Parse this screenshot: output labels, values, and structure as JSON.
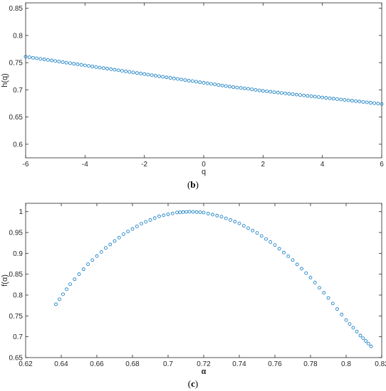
{
  "colors": {
    "marker": "#0072BD",
    "axis": "#262626",
    "background": "#ffffff"
  },
  "captions": [
    {
      "open": "(",
      "letter": "b",
      "close": ")"
    },
    {
      "open": "(",
      "letter": "c",
      "close": ")"
    }
  ],
  "chart_data": [
    {
      "type": "scatter",
      "marker": "circle-open",
      "xlabel": "q",
      "ylabel": "h(q)",
      "xlim": [
        -6,
        6
      ],
      "ylim": [
        0.575,
        0.86
      ],
      "xticks": [
        -6,
        -4,
        -2,
        0,
        2,
        4,
        6
      ],
      "yticks": [
        0.6,
        0.65,
        0.7,
        0.75,
        0.8,
        0.85
      ],
      "xtick_labels": [
        "-6",
        "-4",
        "-2",
        "0",
        "2",
        "4",
        "6"
      ],
      "ytick_labels": [
        "0.6",
        "0.65",
        "0.7",
        "0.75",
        "0.8",
        "0.85"
      ],
      "grid": false,
      "series": [
        {
          "x": [
            -6,
            -5.5,
            -5,
            -4.5,
            -4,
            -3.5,
            -3,
            -2.5,
            -2,
            -1.5,
            -1,
            -0.5,
            0,
            0.5,
            1,
            1.5,
            2,
            2.5,
            3,
            3.5,
            4,
            4.5,
            5,
            5.5,
            6
          ],
          "y": [
            0.761,
            0.757,
            0.753,
            0.749,
            0.745,
            0.741,
            0.737,
            0.733,
            0.729,
            0.725,
            0.721,
            0.717,
            0.713,
            0.709,
            0.705,
            0.702,
            0.698,
            0.695,
            0.692,
            0.689,
            0.686,
            0.683,
            0.68,
            0.677,
            0.674
          ]
        }
      ]
    },
    {
      "type": "scatter",
      "marker": "circle-open",
      "xlabel": "α",
      "ylabel": "f(α)",
      "xlim": [
        0.62,
        0.82
      ],
      "ylim": [
        0.65,
        1.02
      ],
      "xticks": [
        0.62,
        0.64,
        0.66,
        0.68,
        0.7,
        0.72,
        0.74,
        0.76,
        0.78,
        0.8,
        0.82
      ],
      "yticks": [
        0.65,
        0.7,
        0.75,
        0.8,
        0.85,
        0.9,
        0.95,
        1
      ],
      "xtick_labels": [
        "0.62",
        "0.64",
        "0.66",
        "0.68",
        "0.7",
        "0.72",
        "0.74",
        "0.76",
        "0.78",
        "0.8",
        "0.82"
      ],
      "ytick_labels": [
        "0.65",
        "0.7",
        "0.75",
        "0.8",
        "0.85",
        "0.9",
        "0.95",
        "1"
      ],
      "grid": false,
      "series": [
        {
          "x": [
            0.637,
            0.645,
            0.655,
            0.665,
            0.675,
            0.685,
            0.695,
            0.705,
            0.712,
            0.72,
            0.73,
            0.74,
            0.75,
            0.76,
            0.77,
            0.78,
            0.79,
            0.8,
            0.808,
            0.814
          ],
          "y": [
            0.778,
            0.826,
            0.874,
            0.913,
            0.946,
            0.971,
            0.989,
            0.998,
            1.0,
            0.998,
            0.988,
            0.972,
            0.949,
            0.92,
            0.884,
            0.842,
            0.793,
            0.74,
            0.703,
            0.677
          ]
        }
      ]
    }
  ]
}
